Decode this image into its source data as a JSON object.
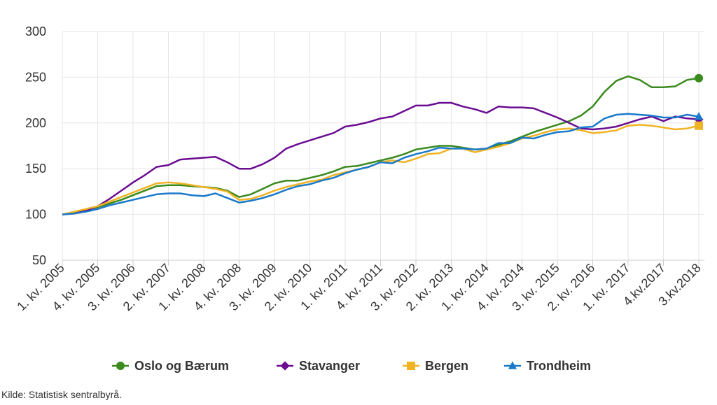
{
  "chart_data": {
    "type": "line",
    "title": "",
    "xlabel": "",
    "ylabel": "",
    "ylim": [
      50,
      300
    ],
    "yticks": [
      50,
      100,
      150,
      200,
      250,
      300
    ],
    "grid": true,
    "legend_position": "bottom",
    "x": [
      "1. kv. 2005",
      "2. kv. 2005",
      "3. kv. 2005",
      "4. kv. 2005",
      "1. kv. 2006",
      "2. kv. 2006",
      "3. kv. 2006",
      "4. kv. 2006",
      "1. kv. 2007",
      "2. kv. 2007",
      "3. kv. 2007",
      "4. kv. 2007",
      "1. kv. 2008",
      "2. kv. 2008",
      "3. kv. 2008",
      "4. kv. 2008",
      "1. kv. 2009",
      "2. kv. 2009",
      "3. kv. 2009",
      "4. kv. 2009",
      "1. kv. 2010",
      "2. kv. 2010",
      "3. kv. 2010",
      "4. kv. 2010",
      "1. kv. 2011",
      "2. kv. 2011",
      "3. kv. 2011",
      "4. kv. 2011",
      "1. kv. 2012",
      "2. kv. 2012",
      "3. kv. 2012",
      "4. kv. 2012",
      "1. kv. 2013",
      "2. kv. 2013",
      "3. kv. 2013",
      "4. kv. 2013",
      "1. kv. 2014",
      "2. kv. 2014",
      "3. kv. 2014",
      "4. kv. 2014",
      "1. kv. 2015",
      "2. kv. 2015",
      "3. kv. 2015",
      "4. kv. 2015",
      "1. kv. 2016",
      "2. kv. 2016",
      "3. kv. 2016",
      "4. kv. 2016",
      "1. kv. 2017",
      "2. kv. 2017",
      "3. kv. 2017",
      "4.kv.2017",
      "1. kv. 2018",
      "2. kv. 2018",
      "3.kv.2018"
    ],
    "x_tick_labels": [
      {
        "index": 0,
        "label": "1. kv. 2005"
      },
      {
        "index": 3,
        "label": "4. kv. 2005"
      },
      {
        "index": 6,
        "label": "3. kv. 2006"
      },
      {
        "index": 9,
        "label": "2. kv. 2007"
      },
      {
        "index": 12,
        "label": "1. kv. 2008"
      },
      {
        "index": 15,
        "label": "4. kv. 2008"
      },
      {
        "index": 18,
        "label": "3. kv. 2009"
      },
      {
        "index": 21,
        "label": "2. kv. 2010"
      },
      {
        "index": 24,
        "label": "1. kv. 2011"
      },
      {
        "index": 27,
        "label": "4. kv. 2011"
      },
      {
        "index": 30,
        "label": "3. kv. 2012"
      },
      {
        "index": 33,
        "label": "2. kv. 2013"
      },
      {
        "index": 36,
        "label": "1. kv. 2014"
      },
      {
        "index": 39,
        "label": "4. kv. 2014"
      },
      {
        "index": 42,
        "label": "3. kv. 2015"
      },
      {
        "index": 45,
        "label": "2. kv. 2016"
      },
      {
        "index": 48,
        "label": "1. kv. 2017"
      },
      {
        "index": 51,
        "label": "4.kv.2017"
      },
      {
        "index": 54,
        "label": "3.kv.2018"
      }
    ],
    "series": [
      {
        "name": "Oslo og Bærum",
        "color": "#3a8a1e",
        "marker": "circle",
        "values": [
          100,
          102,
          105,
          108,
          112,
          116,
          121,
          126,
          131,
          132,
          132,
          131,
          130,
          129,
          126,
          119,
          122,
          128,
          134,
          137,
          137,
          140,
          143,
          147,
          152,
          153,
          156,
          159,
          162,
          166,
          171,
          173,
          175,
          175,
          173,
          171,
          172,
          176,
          180,
          185,
          190,
          194,
          198,
          202,
          208,
          218,
          234,
          246,
          251,
          247,
          239,
          239,
          240,
          247,
          249
        ]
      },
      {
        "name": "Stavanger",
        "color": "#6a0d91",
        "marker": "diamond",
        "values": [
          100,
          101,
          104,
          109,
          117,
          126,
          135,
          143,
          152,
          154,
          160,
          161,
          162,
          163,
          157,
          150,
          150,
          155,
          162,
          172,
          177,
          181,
          185,
          189,
          196,
          198,
          201,
          205,
          207,
          213,
          219,
          219,
          222,
          222,
          218,
          215,
          211,
          218,
          217,
          217,
          216,
          211,
          206,
          200,
          194,
          193,
          194,
          196,
          200,
          204,
          207,
          202,
          207,
          205,
          204
        ]
      },
      {
        "name": "Bergen",
        "color": "#f0b323",
        "marker": "square",
        "values": [
          100,
          103,
          106,
          109,
          114,
          119,
          124,
          129,
          134,
          135,
          134,
          132,
          130,
          128,
          125,
          116,
          117,
          121,
          126,
          130,
          133,
          136,
          138,
          143,
          146,
          149,
          152,
          157,
          159,
          157,
          161,
          166,
          167,
          172,
          172,
          168,
          171,
          174,
          178,
          183,
          186,
          190,
          193,
          194,
          192,
          189,
          190,
          192,
          197,
          198,
          197,
          195,
          193,
          194,
          197
        ]
      },
      {
        "name": "Trondheim",
        "color": "#1a7acb",
        "marker": "triangle",
        "values": [
          100,
          101,
          103,
          106,
          110,
          113,
          116,
          119,
          122,
          123,
          123,
          121,
          120,
          123,
          118,
          113,
          115,
          118,
          122,
          127,
          131,
          133,
          137,
          140,
          145,
          149,
          152,
          157,
          156,
          162,
          166,
          169,
          173,
          172,
          172,
          171,
          172,
          178,
          178,
          184,
          183,
          187,
          190,
          191,
          195,
          196,
          205,
          209,
          210,
          209,
          208,
          206,
          206,
          209,
          207
        ]
      }
    ]
  },
  "source": "Kilde: Statistisk sentralbyrå."
}
